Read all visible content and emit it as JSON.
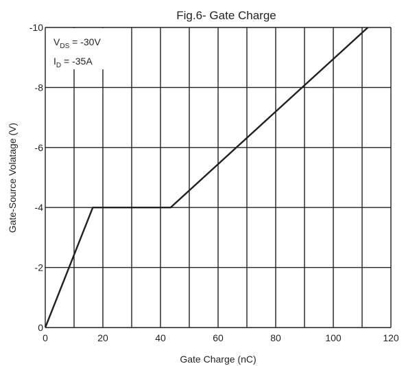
{
  "chart_data": {
    "type": "line",
    "title": "Fig.6- Gate Charge",
    "xlabel": "Gate Charge (nC)",
    "ylabel": "Gate-Source Volatage  (V)",
    "xlim": [
      0,
      120
    ],
    "ylim": [
      0,
      -10
    ],
    "x_ticks": [
      "0",
      "20",
      "40",
      "60",
      "80",
      "100",
      "120"
    ],
    "y_ticks": [
      "0",
      "-2",
      "-4",
      "-6",
      "-8",
      "-10"
    ],
    "grid": true,
    "annotations": {
      "vds_main": "V",
      "vds_sub": "DS",
      "vds_value": " = -30V",
      "id_main": "I",
      "id_sub": "D",
      "id_value": " = -35A"
    },
    "series": [
      {
        "points": [
          {
            "x": 0,
            "y": 0
          },
          {
            "x": 16.5,
            "y": -4
          },
          {
            "x": 43.5,
            "y": -4
          },
          {
            "x": 112,
            "y": -10
          }
        ]
      }
    ]
  }
}
